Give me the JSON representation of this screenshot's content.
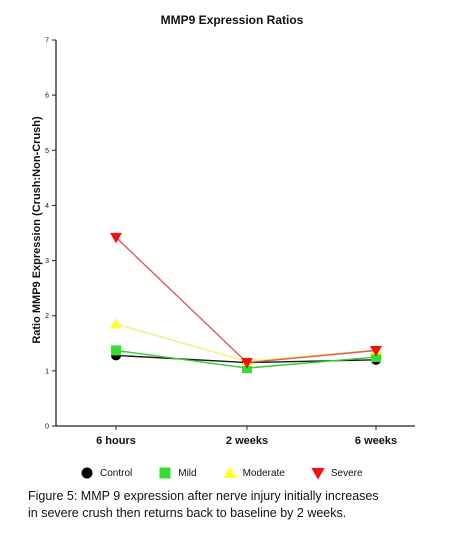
{
  "chart_data": {
    "type": "line",
    "title": "MMP9 Expression Ratios",
    "xlabel": "",
    "ylabel": "Ratio MMP9 Expression (Crush:Non-Crush)",
    "categories": [
      "6 hours",
      "2 weeks",
      "6 weeks"
    ],
    "ylim": [
      0,
      7
    ],
    "yticks": [
      "0",
      "1",
      "2",
      "3",
      "4",
      "5",
      "6",
      "7"
    ],
    "grid": false,
    "legend_position": "bottom",
    "series": [
      {
        "name": "Control",
        "marker": "circle",
        "color": "#000000",
        "line_color": "#1a1a1a",
        "values": [
          1.28,
          1.15,
          1.2
        ]
      },
      {
        "name": "Mild",
        "marker": "square",
        "color": "#33dd33",
        "line_color": "#33cc33",
        "values": [
          1.37,
          1.05,
          1.25
        ]
      },
      {
        "name": "Moderate",
        "marker": "triangle-up",
        "color": "#ffff33",
        "line_color": "#f5f07a",
        "values": [
          1.85,
          1.17,
          1.38
        ]
      },
      {
        "name": "Severe",
        "marker": "triangle-down",
        "color": "#ee1111",
        "line_color": "#e05a5a",
        "values": [
          3.42,
          1.15,
          1.37
        ]
      }
    ]
  },
  "caption": {
    "line1": "Figure 5: MMP 9 expression after nerve injury initially increases",
    "line2": "in severe crush then returns back to baseline by 2 weeks."
  }
}
